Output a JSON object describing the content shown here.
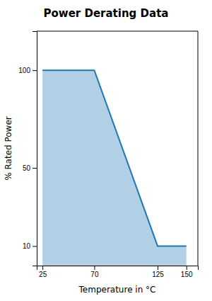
{
  "chart_data": {
    "type": "area",
    "title": "Power Derating Data",
    "xlabel": "Temperature in °C",
    "ylabel": "% Rated Power",
    "x": [
      25,
      70,
      125,
      150
    ],
    "values": [
      100,
      100,
      10,
      10
    ],
    "xlim": [
      20,
      160
    ],
    "xticks": [
      25,
      70,
      125,
      150
    ],
    "ylim": [
      0,
      120
    ],
    "yticks": [
      10,
      50,
      100
    ]
  }
}
